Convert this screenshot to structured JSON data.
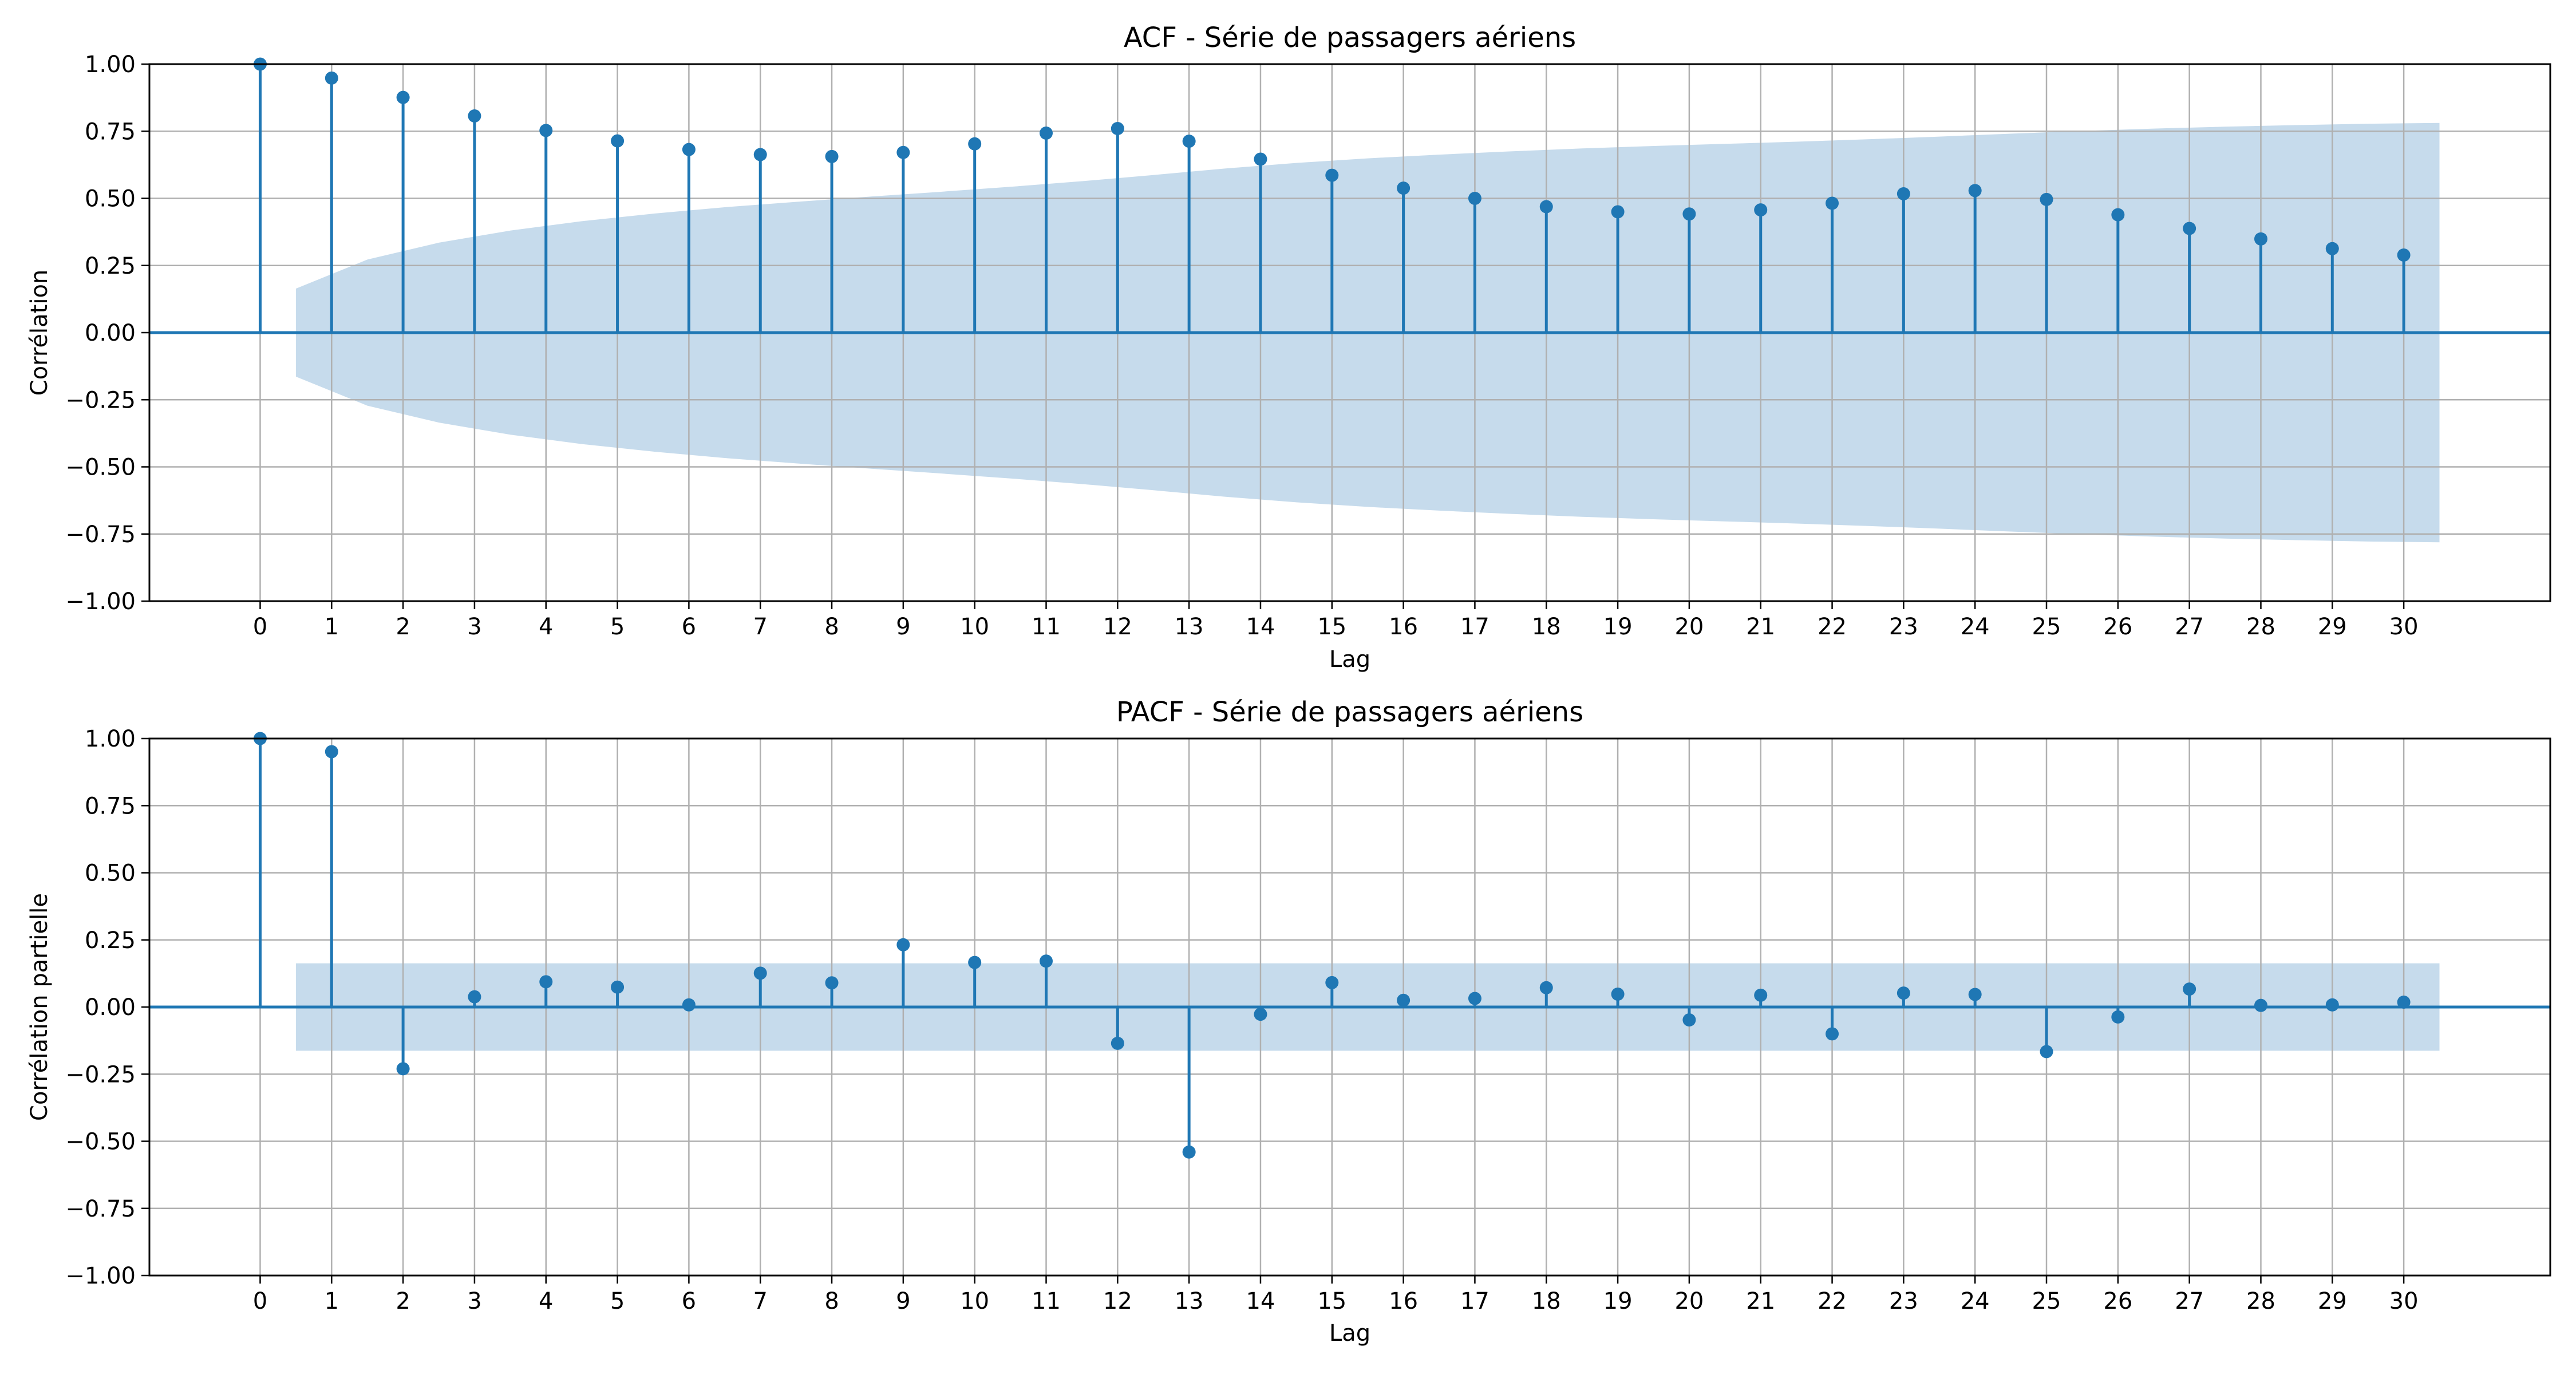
{
  "colors": {
    "series": "#1f77b4",
    "band": "#c6dbec",
    "grid": "#b0b0b0",
    "axis": "#000000"
  },
  "chart_data": [
    {
      "type": "stem",
      "title": "ACF - Série de passagers aériens",
      "xlabel": "Lag",
      "ylabel": "Corrélation",
      "ylim": [
        -1.0,
        1.0
      ],
      "xlim": [
        -1.55,
        32.05
      ],
      "y_ticks": [
        "−1.00",
        "−0.75",
        "−0.50",
        "−0.25",
        "0.00",
        "0.25",
        "0.50",
        "0.75",
        "1.00"
      ],
      "x_ticks": [
        "0",
        "1",
        "2",
        "3",
        "4",
        "5",
        "6",
        "7",
        "8",
        "9",
        "10",
        "11",
        "12",
        "13",
        "14",
        "15",
        "16",
        "17",
        "18",
        "19",
        "20",
        "21",
        "22",
        "23",
        "24",
        "25",
        "26",
        "27",
        "28",
        "29",
        "30"
      ],
      "grid": true,
      "series": [
        {
          "x": [
            0,
            1,
            2,
            3,
            4,
            5,
            6,
            7,
            8,
            9,
            10,
            11,
            12,
            13,
            14,
            15,
            16,
            17,
            18,
            19,
            20,
            21,
            22,
            23,
            24,
            25,
            26,
            27,
            28,
            29,
            30
          ],
          "values": [
            1.0,
            0.948,
            0.876,
            0.807,
            0.753,
            0.714,
            0.682,
            0.663,
            0.656,
            0.671,
            0.703,
            0.743,
            0.76,
            0.713,
            0.646,
            0.586,
            0.538,
            0.5,
            0.469,
            0.45,
            0.442,
            0.457,
            0.482,
            0.517,
            0.529,
            0.496,
            0.439,
            0.388,
            0.349,
            0.313,
            0.289
          ]
        }
      ],
      "confidence_band": {
        "x_start": 0.5,
        "x_end": 30.5,
        "upper": [
          0.164,
          0.272,
          0.335,
          0.38,
          0.415,
          0.443,
          0.467,
          0.487,
          0.506,
          0.524,
          0.543,
          0.564,
          0.587,
          0.611,
          0.632,
          0.649,
          0.663,
          0.675,
          0.686,
          0.695,
          0.703,
          0.711,
          0.72,
          0.73,
          0.741,
          0.751,
          0.76,
          0.767,
          0.773,
          0.778,
          0.781
        ]
      }
    },
    {
      "type": "stem",
      "title": "PACF - Série de passagers aériens",
      "xlabel": "Lag",
      "ylabel": "Corrélation partielle",
      "ylim": [
        -1.0,
        1.0
      ],
      "xlim": [
        -1.55,
        32.05
      ],
      "y_ticks": [
        "−1.00",
        "−0.75",
        "−0.50",
        "−0.25",
        "0.00",
        "0.25",
        "0.50",
        "0.75",
        "1.00"
      ],
      "x_ticks": [
        "0",
        "1",
        "2",
        "3",
        "4",
        "5",
        "6",
        "7",
        "8",
        "9",
        "10",
        "11",
        "12",
        "13",
        "14",
        "15",
        "16",
        "17",
        "18",
        "19",
        "20",
        "21",
        "22",
        "23",
        "24",
        "25",
        "26",
        "27",
        "28",
        "29",
        "30"
      ],
      "grid": true,
      "series": [
        {
          "x": [
            0,
            1,
            2,
            3,
            4,
            5,
            6,
            7,
            8,
            9,
            10,
            11,
            12,
            13,
            14,
            15,
            16,
            17,
            18,
            19,
            20,
            21,
            22,
            23,
            24,
            25,
            26,
            27,
            28,
            29,
            30
          ],
          "values": [
            1.0,
            0.951,
            -0.23,
            0.038,
            0.094,
            0.074,
            0.008,
            0.126,
            0.09,
            0.232,
            0.166,
            0.171,
            -0.135,
            -0.54,
            -0.027,
            0.091,
            0.025,
            0.032,
            0.072,
            0.048,
            -0.048,
            0.044,
            -0.1,
            0.052,
            0.047,
            -0.166,
            -0.037,
            0.067,
            0.006,
            0.008,
            0.018
          ]
        }
      ],
      "confidence_band": {
        "x_start": 0.5,
        "x_end": 30.5,
        "upper": [
          0.163,
          0.163
        ]
      }
    }
  ]
}
